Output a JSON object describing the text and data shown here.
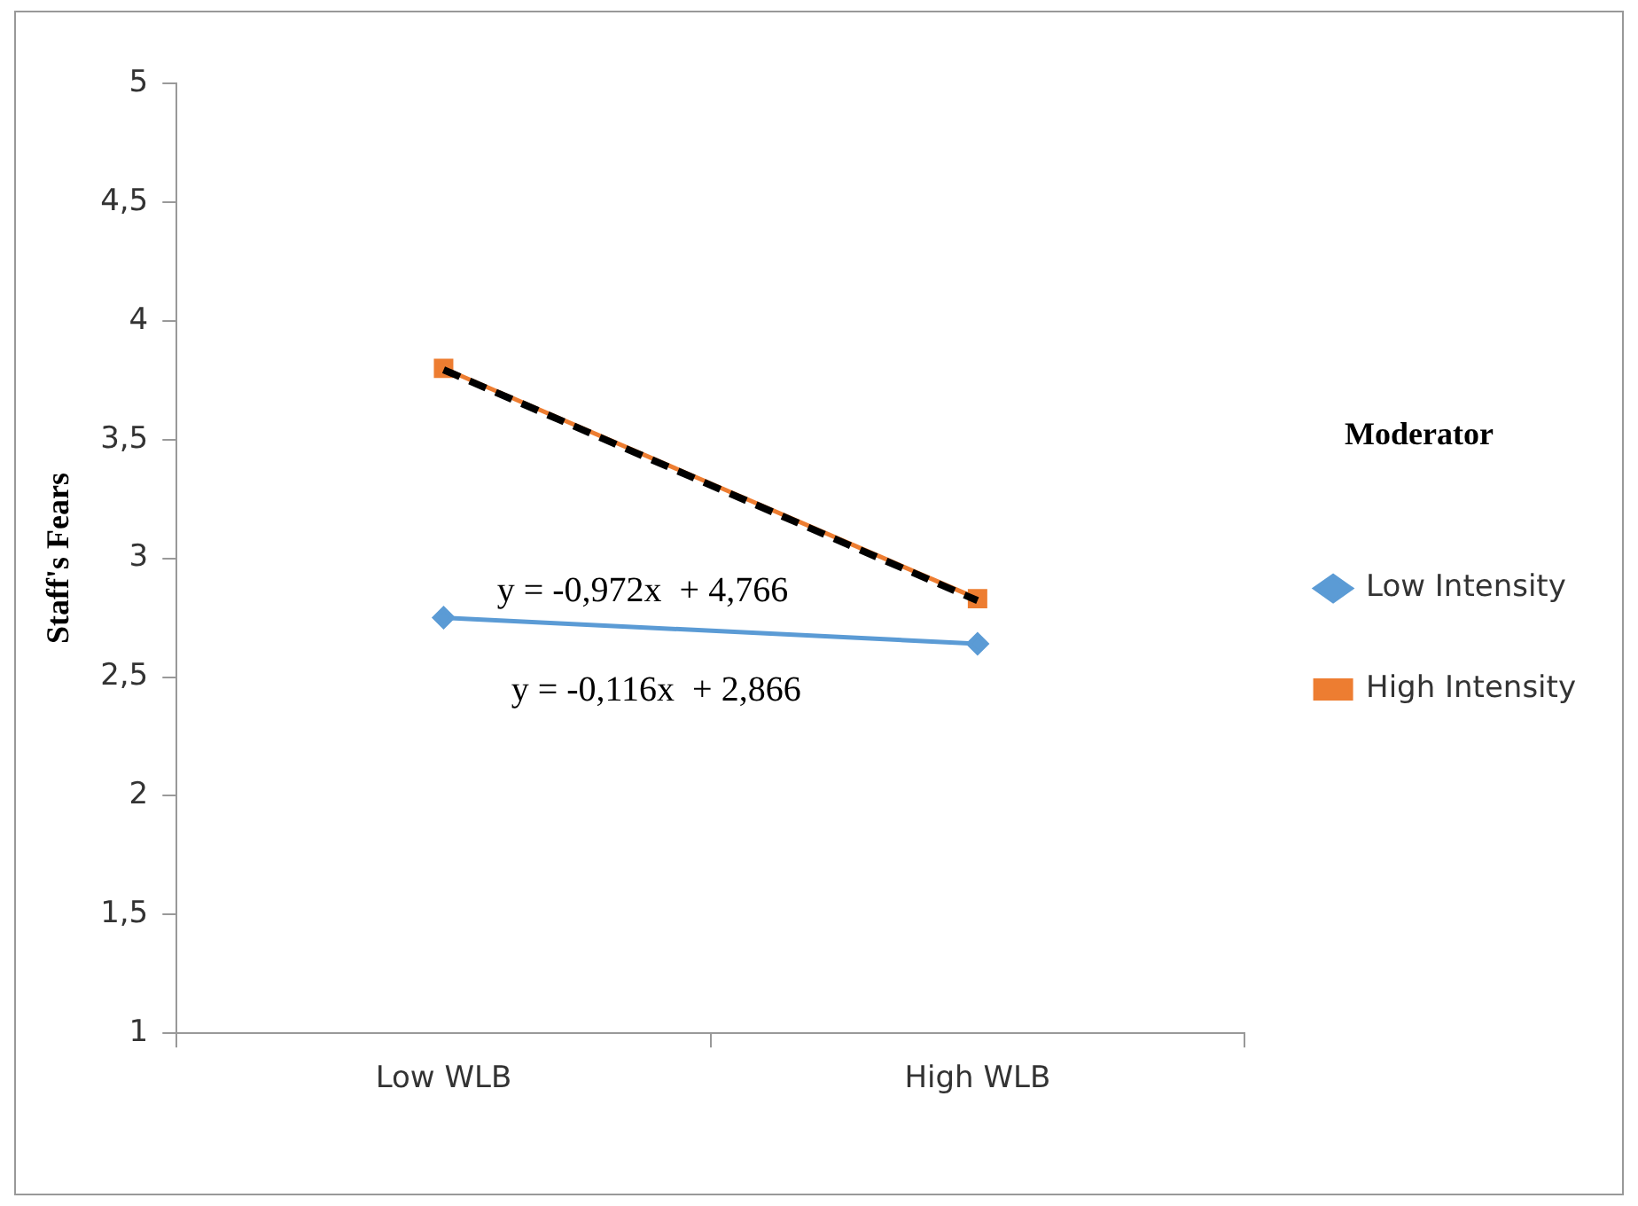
{
  "chart_data": {
    "type": "line",
    "ylabel": "Staff's Fears",
    "legend_title": "Moderator",
    "categories": [
      "Low WLB",
      "High WLB"
    ],
    "series": [
      {
        "name": "Low Intensity",
        "color": "#5b9bd5",
        "marker": "diamond",
        "values": [
          2.75,
          2.64
        ]
      },
      {
        "name": "High Intensity",
        "color": "#ed7d31",
        "marker": "square",
        "values": [
          3.8,
          2.83
        ]
      },
      {
        "type": "line",
        "color": "#000000",
        "line_style": "dashed",
        "marker": "none",
        "x": [
          "Low WLB",
          "High WLB"
        ],
        "values": [
          3.794,
          2.822
        ]
      }
    ],
    "ylim": [
      1,
      5
    ],
    "yticks": [
      1,
      {
        "value": 1.5,
        "label": "1,5"
      },
      2,
      {
        "value": 2.5,
        "label": "2,5"
      },
      3,
      {
        "value": 3.5,
        "label": "3,5"
      },
      4,
      {
        "value": 4.5,
        "label": "4,5"
      },
      5
    ],
    "legend": "right",
    "grid": false,
    "annotations": [
      "y = -0,972x  + 4,766",
      "y = -0,116x  + 2,866"
    ]
  }
}
